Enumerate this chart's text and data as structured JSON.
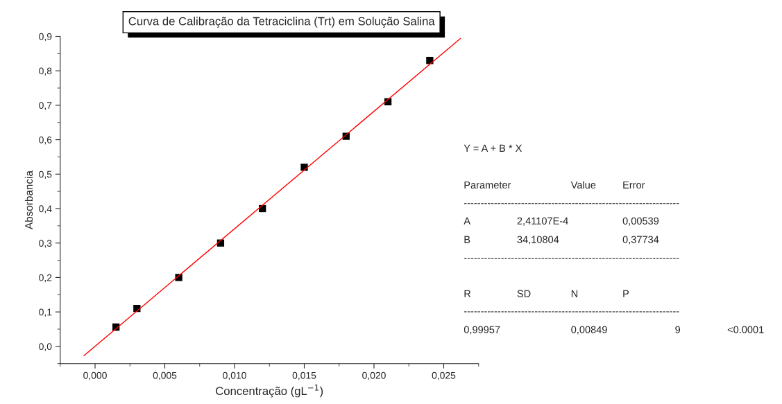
{
  "chart_data": {
    "type": "scatter",
    "title": "Curva de Calibração da Tetraciclina (Trt) em Solução Salina",
    "xlabel": "Concentração (gL$^{−1}$)",
    "ylabel": "Absorbancia",
    "series": [
      {
        "color": "#000000",
        "marker": "square",
        "x": [
          0.0015,
          0.003,
          0.006,
          0.009,
          0.012,
          0.015,
          0.018,
          0.021,
          0.024
        ],
        "values": [
          0.056,
          0.11,
          0.2,
          0.3,
          0.4,
          0.52,
          0.61,
          0.71,
          0.83
        ]
      },
      {
        "type": "line",
        "color": "#ff0000",
        "marker": "none",
        "line_style": "solid",
        "x": [
          -0.0008,
          0.0262
        ],
        "values": [
          -0.027,
          0.894
        ]
      }
    ],
    "xlim": [
      -0.0025,
      0.0275
    ],
    "ylim": [
      -0.05,
      0.9
    ],
    "xticks": [
      {
        "value": 0,
        "label": "0,000"
      },
      {
        "value": 0.005,
        "label": "0,005"
      },
      {
        "value": 0.01,
        "label": "0,010"
      },
      {
        "value": 0.015,
        "label": "0,015"
      },
      {
        "value": 0.02,
        "label": "0,020"
      },
      {
        "value": 0.025,
        "label": "0,025"
      }
    ],
    "yticks": [
      {
        "value": 0,
        "label": "0,0"
      },
      {
        "value": 0.1,
        "label": "0,1"
      },
      {
        "value": 0.2,
        "label": "0,2"
      },
      {
        "value": 0.3,
        "label": "0,3"
      },
      {
        "value": 0.4,
        "label": "0,4"
      },
      {
        "value": 0.5,
        "label": "0,5"
      },
      {
        "value": 0.6,
        "label": "0,6"
      },
      {
        "value": 0.7,
        "label": "0,7"
      },
      {
        "value": 0.8,
        "label": "0,8"
      },
      {
        "value": 0.9,
        "label": "0,9"
      }
    ],
    "grid": false,
    "legend": false,
    "annotations": [
      "Y = A + B * X",
      "Parameter",
      "Value",
      "Error",
      "----------------------------------------------------------------",
      "A",
      "2,41107E-4",
      "0,00539",
      "B",
      "34,10804",
      "0,37734",
      "----------------------------------------------------------------",
      "R",
      "SD",
      "N",
      "P",
      "----------------------------------------------------------------",
      "0,99957",
      "0,00849",
      "9",
      "<0.0001"
    ]
  }
}
